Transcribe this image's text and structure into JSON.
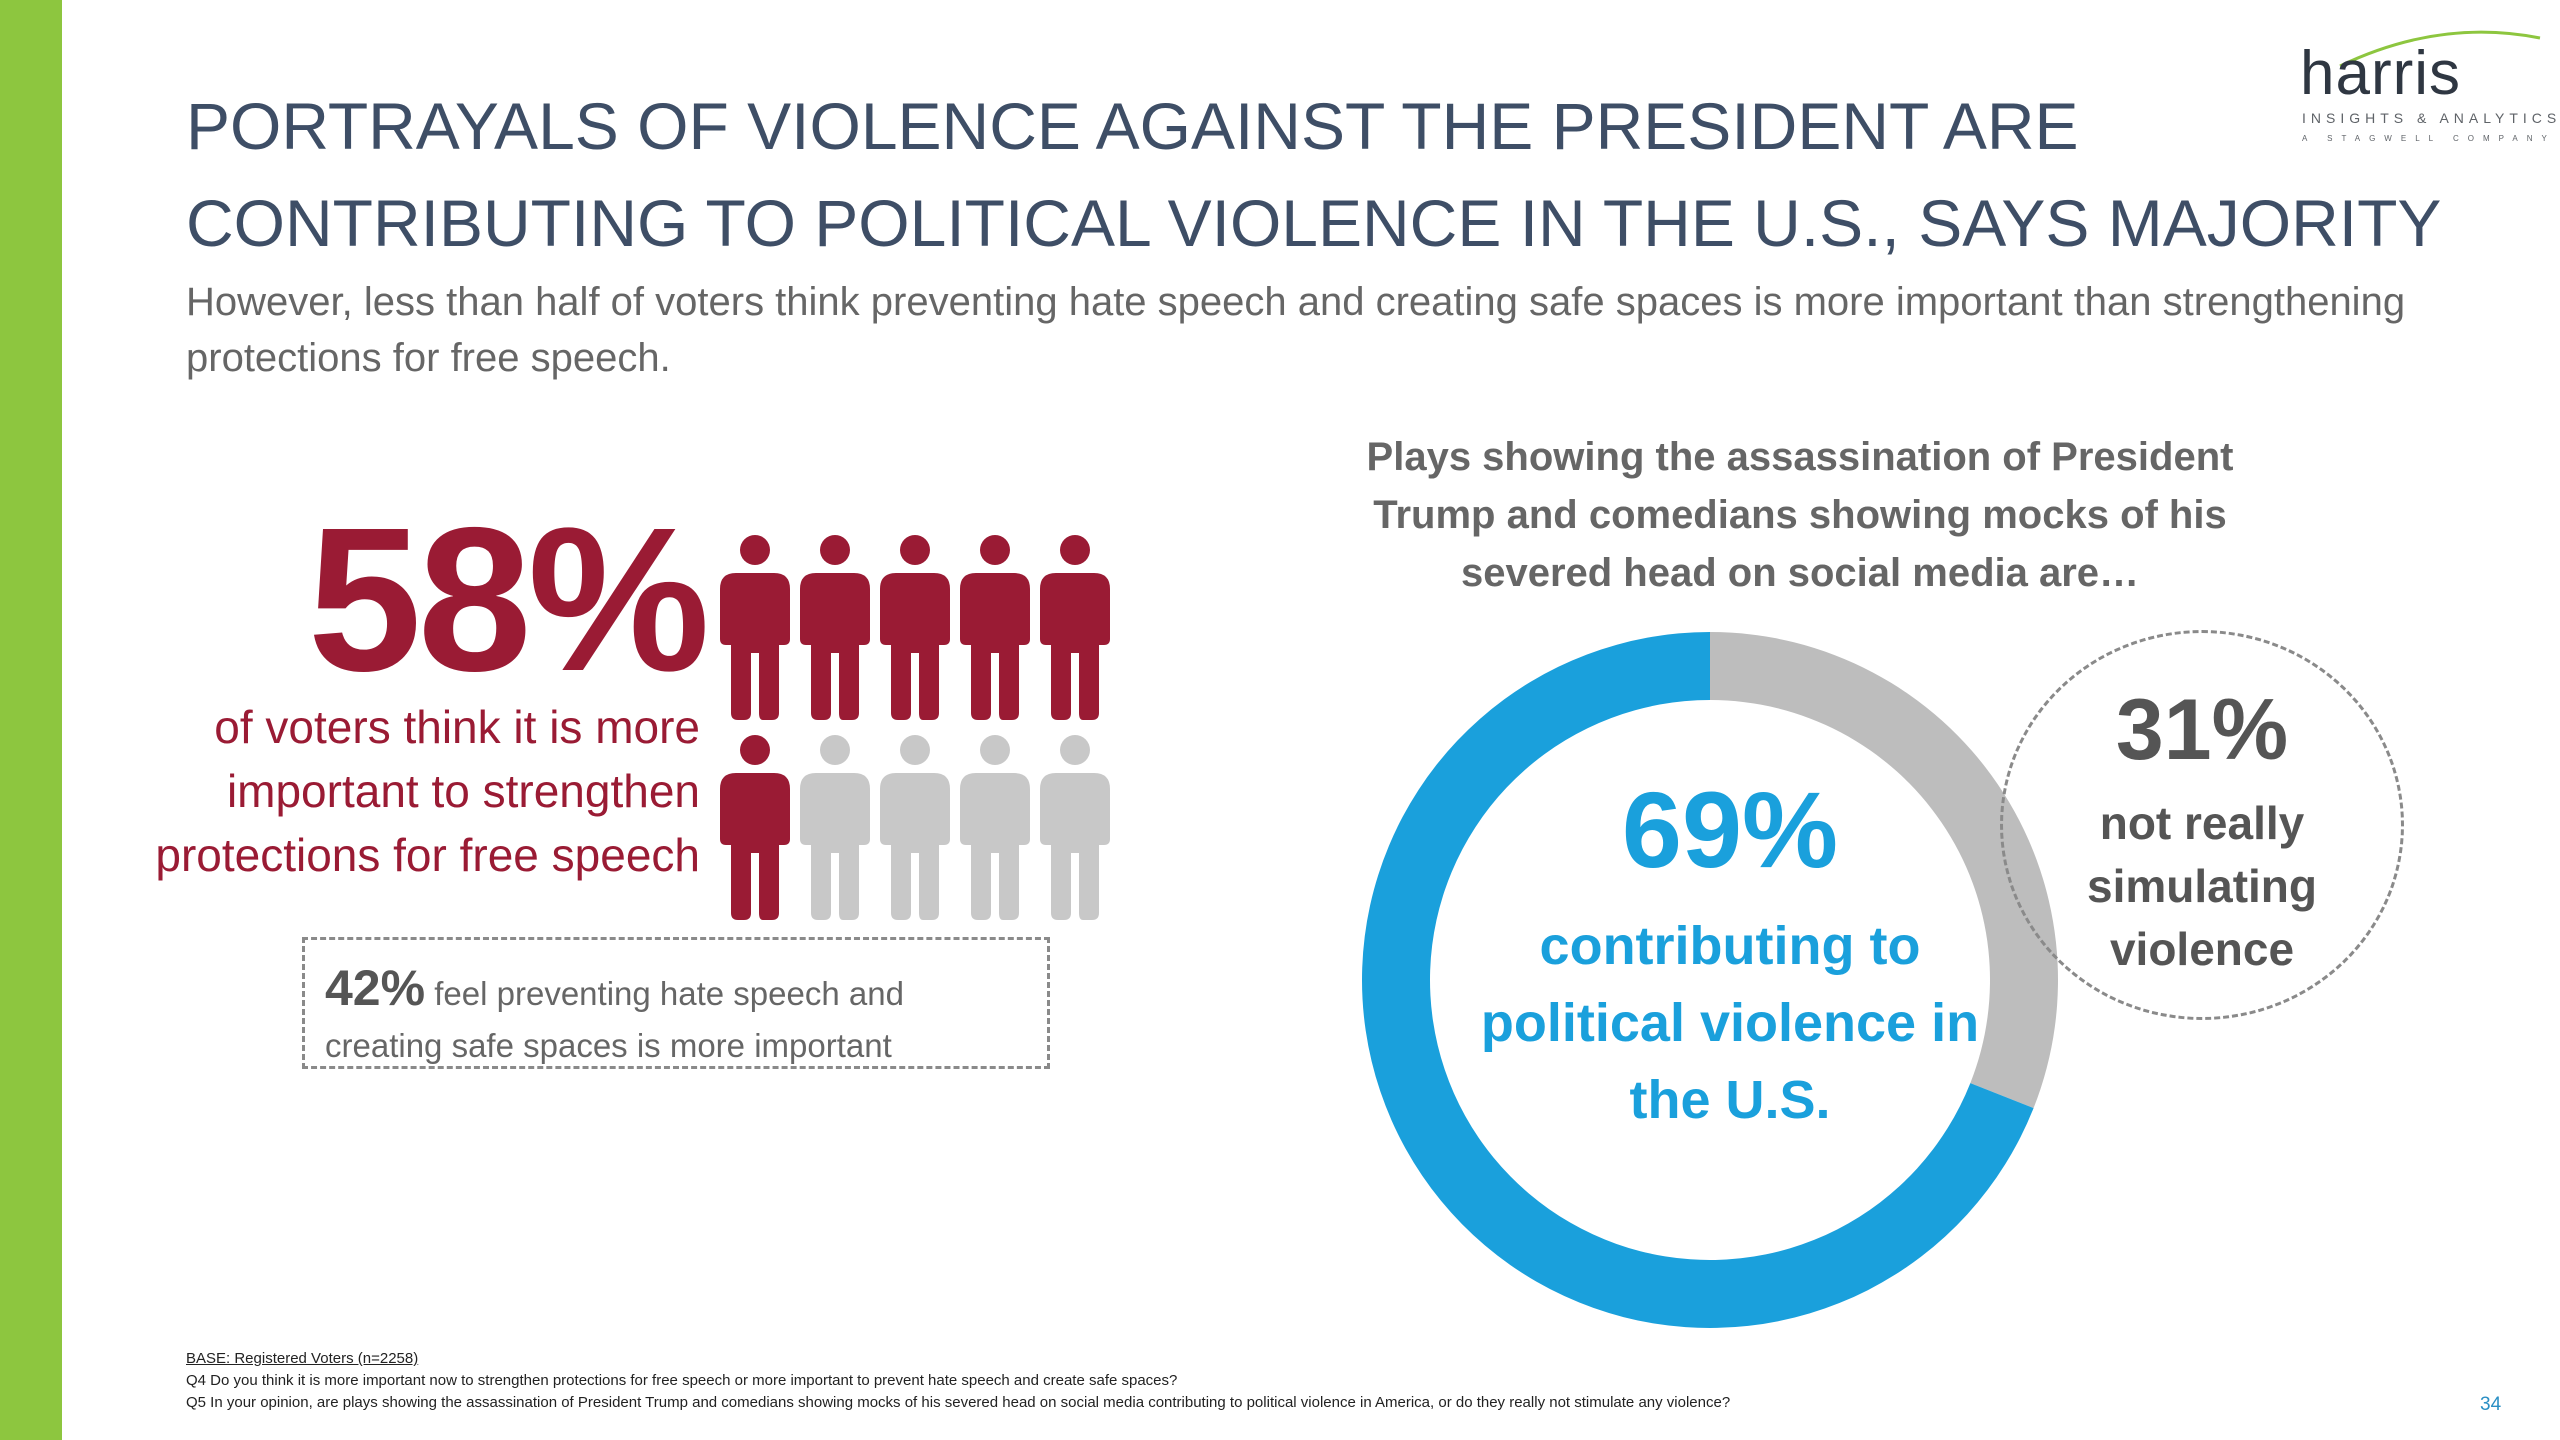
{
  "colors": {
    "accent_bar": "#8dc63f",
    "title": "#3e4e66",
    "highlight_red": "#9a1b34",
    "neutral_gray": "#c8c8c8",
    "donut_blue": "#1aa0dc",
    "donut_gray": "#bdbdbd"
  },
  "logo": {
    "wordmark": "harris",
    "tagline": "INSIGHTS & ANALYTICS",
    "sub": "A STAGWELL COMPANY"
  },
  "title": "PORTRAYALS OF VIOLENCE AGAINST THE PRESIDENT ARE CONTRIBUTING TO POLITICAL VIOLENCE IN THE U.S., SAYS MAJORITY",
  "subtitle": "However, less than half of voters think preventing hate speech and creating safe spaces is more important than strengthening protections for free speech.",
  "free_speech": {
    "percent_label": "58%",
    "description": "of voters think it is more important to strengthen protections for free speech",
    "alt_percent_label": "42%",
    "alt_description": "feel preventing hate speech and creating safe spaces is more important",
    "icon": "person-icon"
  },
  "chart_data": [
    {
      "type": "pictograph",
      "total_icons": 10,
      "highlighted_icons": 6,
      "series": [
        {
          "name": "58%",
          "value": 58,
          "color": "#9a1b34"
        },
        {
          "name": "42%",
          "value": 42,
          "color": "#c8c8c8"
        }
      ]
    },
    {
      "type": "donut",
      "title": "Plays showing the assassination of President Trump and comedians showing mocks of his severed head on social media are…",
      "slices": [
        {
          "label": "contributing to political violence in the U.S.",
          "value": 69,
          "value_label": "69%",
          "color": "#1aa0dc"
        },
        {
          "label": "not really simulating violence",
          "value": 31,
          "value_label": "31%",
          "color": "#bdbdbd"
        }
      ]
    }
  ],
  "footnotes": {
    "base": "BASE: Registered Voters (n=2258)",
    "q4": "Q4 Do you think it is more important now to strengthen protections for free speech or more important to prevent hate speech and create safe spaces?",
    "q5": "Q5 In your opinion, are plays showing the assassination of President Trump and comedians showing mocks of his severed head on social media contributing to political violence in America, or do they really not stimulate any violence?"
  },
  "page_number": "34"
}
